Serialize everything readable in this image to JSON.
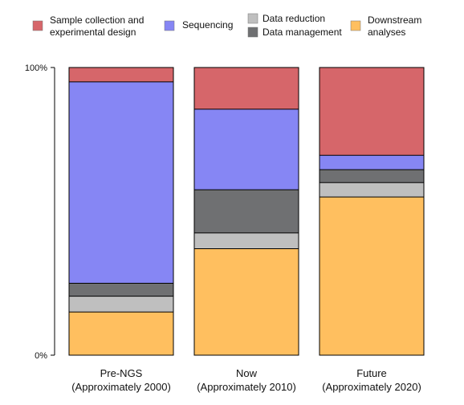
{
  "chart_data": {
    "type": "bar",
    "stacked": true,
    "normalized": true,
    "categories": [
      [
        "Pre-NGS",
        "(Approximately 2000)"
      ],
      [
        "Now",
        "(Approximately 2010)"
      ],
      [
        "Future",
        "(Approximately 2020)"
      ]
    ],
    "series": [
      {
        "name": "Downstream analyses",
        "legend_lines": [
          "Downstream",
          "analyses"
        ],
        "color": "#FFBF5F",
        "values": [
          15,
          37,
          55
        ]
      },
      {
        "name": "Data reduction",
        "legend_lines": [
          "Data reduction"
        ],
        "color": "#BFBFBF",
        "values": [
          5.5,
          5.5,
          5
        ]
      },
      {
        "name": "Data management",
        "legend_lines": [
          "Data management"
        ],
        "color": "#6F7072",
        "values": [
          4.5,
          15,
          4.5
        ]
      },
      {
        "name": "Sequencing",
        "legend_lines": [
          "Sequencing"
        ],
        "color": "#8686F4",
        "values": [
          70,
          28,
          5
        ]
      },
      {
        "name": "Sample collection and experimental design",
        "legend_lines": [
          "Sample collection and",
          "experimental design"
        ],
        "color": "#D6666A",
        "values": [
          5,
          14.5,
          30.5
        ]
      }
    ],
    "ylim": [
      0,
      100
    ],
    "yticks": [
      {
        "value": 0,
        "label": "0%"
      },
      {
        "value": 100,
        "label": "100%"
      }
    ],
    "grid": false,
    "legend_position": "top",
    "legend_order": [
      4,
      3,
      1,
      2,
      0
    ]
  }
}
